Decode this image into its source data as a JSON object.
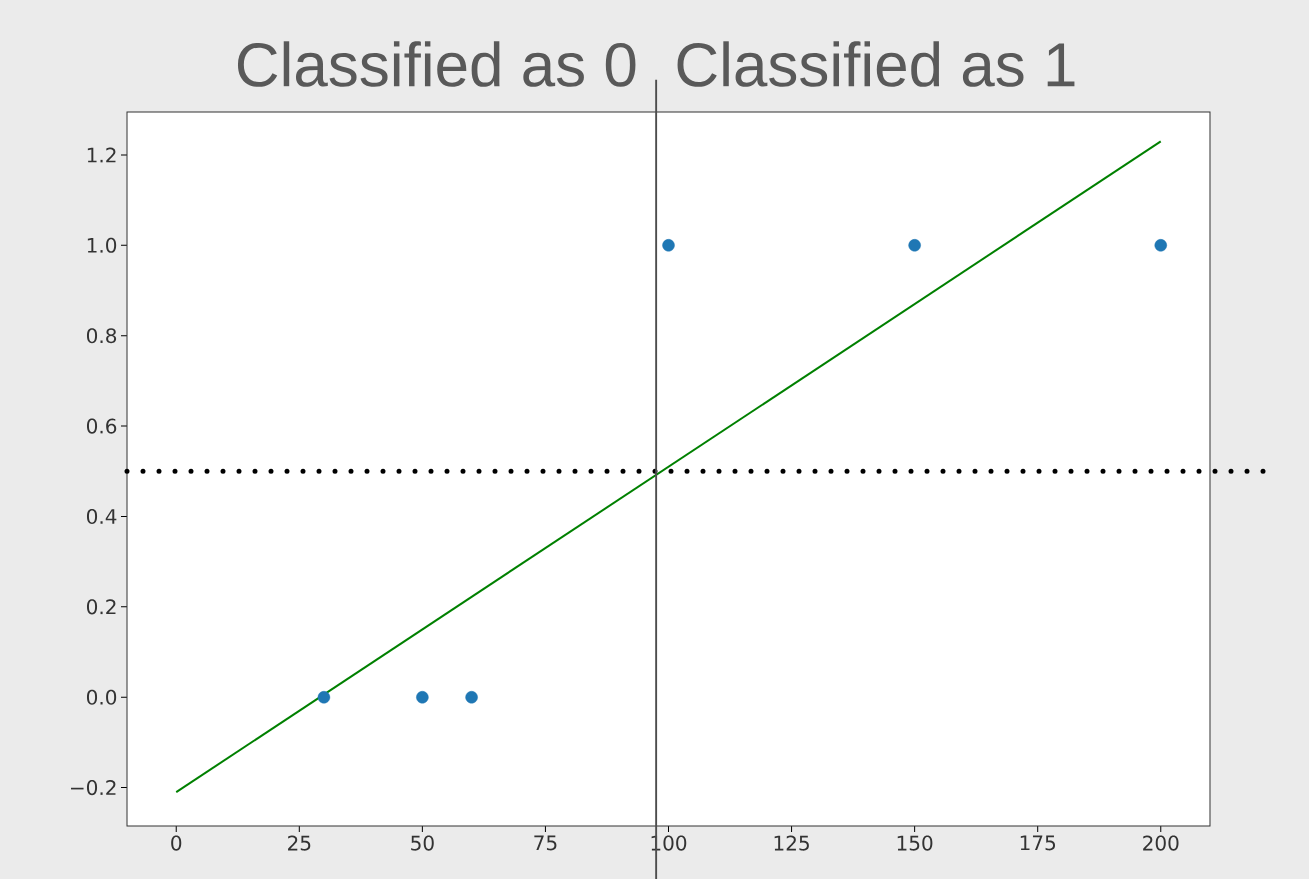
{
  "chart_data": {
    "type": "scatter",
    "annotations": [
      "Classified as 0",
      "Classified as 1"
    ],
    "xlim": [
      -10,
      210
    ],
    "ylim": [
      -0.285,
      1.295
    ],
    "xticks": [
      0,
      25,
      50,
      75,
      100,
      125,
      150,
      175,
      200
    ],
    "yticks": [
      {
        "value": -0.2,
        "label": "−0.2"
      },
      {
        "value": 0,
        "label": "0.0"
      },
      {
        "value": 0.2,
        "label": "0.2"
      },
      {
        "value": 0.4,
        "label": "0.4"
      },
      {
        "value": 0.6,
        "label": "0.6"
      },
      {
        "value": 0.8,
        "label": "0.8"
      },
      {
        "value": 1,
        "label": "1.0"
      },
      {
        "value": 1.2,
        "label": "1.2"
      }
    ],
    "series": [
      {
        "color": "#1f77b4",
        "marker": "circle",
        "x": [
          30,
          50,
          60,
          100,
          150,
          200
        ],
        "values": [
          0,
          0,
          0,
          1,
          1,
          1
        ]
      },
      {
        "type": "line",
        "color": "#008000",
        "marker": "none",
        "x": [
          0,
          200
        ],
        "values": [
          -0.21,
          1.23
        ]
      }
    ],
    "ref_lines": [
      {
        "axis": "y",
        "value": 0.5,
        "color": "#000000",
        "line_style": "dotted"
      },
      {
        "axis": "x",
        "value": 97.5,
        "color": "#4d4d4d",
        "line_style": "solid"
      }
    ],
    "grid": false
  }
}
